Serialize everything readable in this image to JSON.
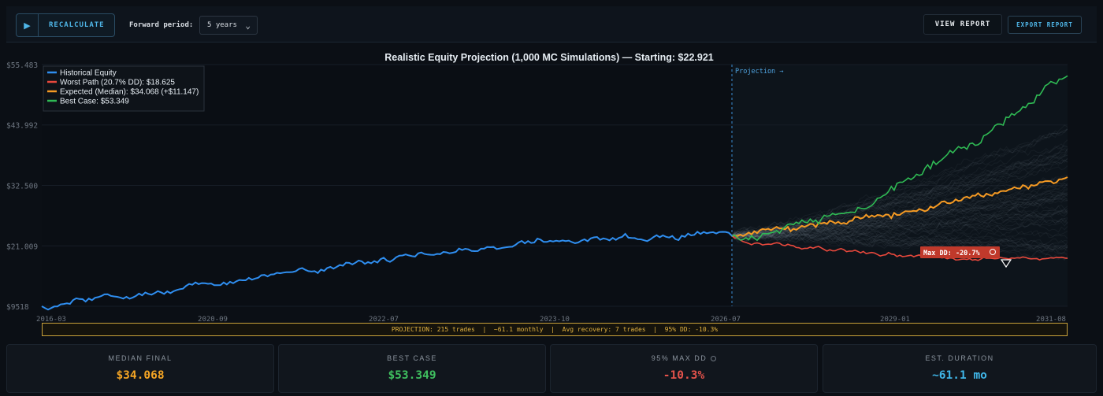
{
  "toolbar": {
    "recalc_label": "RECALCULATE",
    "forward_period_label": "Forward period:",
    "forward_period_value": "5 years",
    "view_report_label": "VIEW REPORT",
    "export_report_label": "EXPORT REPORT"
  },
  "chart_data": {
    "type": "line",
    "title": "Realistic Equity Projection (1,000 MC Simulations) — Starting: $22.921",
    "y_ticks": [
      "$55.483",
      "$43.992",
      "$32.500",
      "$21.009",
      "$9518"
    ],
    "y_tick_values": [
      55483,
      43992,
      32500,
      21009,
      9518
    ],
    "ylim": [
      9518,
      55483
    ],
    "x_ticks": [
      "2016-03",
      "2020-09",
      "2022-07",
      "2023-10",
      "2026-07",
      "2029-01",
      "2031-08"
    ],
    "projection_marker": "Projection →",
    "legend": [
      {
        "name": "Historical Equity",
        "color": "#2f8ef0"
      },
      {
        "name": "Worst Path (20.7% DD): $18.625",
        "color": "#e8483c"
      },
      {
        "name": "Expected (Median): $34.068 (+$11.147)",
        "color": "#f59a23"
      },
      {
        "name": "Best Case: $53.349",
        "color": "#2fba54"
      }
    ],
    "series": [
      {
        "name": "Historical Equity",
        "start": 9518,
        "end": 22921
      },
      {
        "name": "Worst Path (20.7% DD): $18.625",
        "start": 22921,
        "end": 18625
      },
      {
        "name": "Expected (Median): $34.068 (+$11.147)",
        "start": 22921,
        "end": 34068
      },
      {
        "name": "Best Case: $53.349",
        "start": 22921,
        "end": 53349
      }
    ],
    "annotation": "Max DD: -20.7%",
    "legend_placement": "top-left"
  },
  "summary": "PROJECTION: 215 trades  |  ~61.1 monthly  |  Avg recovery: 7 trades  |  95% DD: -10.3%",
  "cards": [
    {
      "title": "MEDIAN FINAL",
      "value": "$34.068",
      "color": "#f5a524"
    },
    {
      "title": "BEST CASE",
      "value": "$53.349",
      "color": "#3fbf5f"
    },
    {
      "title": "95% MAX DD",
      "value": "-10.3%",
      "color": "#e5534b"
    },
    {
      "title": "EST. DURATION",
      "value": "~61.1 mo",
      "color": "#3fb6e8"
    }
  ]
}
